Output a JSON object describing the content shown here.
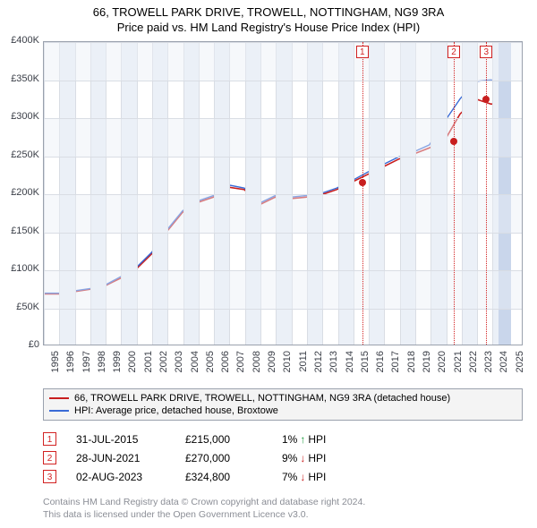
{
  "title": "66, TROWELL PARK DRIVE, TROWELL, NOTTINGHAM, NG9 3RA",
  "subtitle": "Price paid vs. HM Land Registry's House Price Index (HPI)",
  "chart": {
    "type": "line",
    "background_color": "#ffffff",
    "plot_border_color": "#9aa1ad",
    "band_color": "#ebf0f7",
    "grid_color": "#d9dde4",
    "axis_font_size": 11,
    "axis_text_color": "#3a3e47",
    "x": {
      "min": 1995,
      "max": 2026,
      "tick_step": 1
    },
    "y": {
      "min": 0,
      "max": 400000,
      "tick_step": 50000,
      "prefix": "£",
      "labels": [
        "£0",
        "£50K",
        "£100K",
        "£150K",
        "£200K",
        "£250K",
        "£300K",
        "£350K",
        "£400K"
      ]
    },
    "series": [
      {
        "name": "66, TROWELL PARK DRIVE, TROWELL, NOTTINGHAM, NG9 3RA (detached house)",
        "color": "#c81e1e",
        "line_width": 1.6,
        "points": [
          [
            1995,
            67000
          ],
          [
            1996,
            67000
          ],
          [
            1997,
            70000
          ],
          [
            1998,
            73000
          ],
          [
            1999,
            78000
          ],
          [
            2000,
            88000
          ],
          [
            2001,
            100000
          ],
          [
            2002,
            120000
          ],
          [
            2003,
            150000
          ],
          [
            2004,
            175000
          ],
          [
            2005,
            188000
          ],
          [
            2006,
            195000
          ],
          [
            2007,
            208000
          ],
          [
            2008,
            205000
          ],
          [
            2009,
            185000
          ],
          [
            2010,
            195000
          ],
          [
            2011,
            193000
          ],
          [
            2012,
            195000
          ],
          [
            2013,
            198000
          ],
          [
            2014,
            205000
          ],
          [
            2015,
            215000
          ],
          [
            2016,
            225000
          ],
          [
            2017,
            235000
          ],
          [
            2018,
            245000
          ],
          [
            2019,
            252000
          ],
          [
            2020,
            260000
          ],
          [
            2021,
            270000
          ],
          [
            2022,
            305000
          ],
          [
            2023,
            324800
          ],
          [
            2024,
            318000
          ],
          [
            2025,
            320000
          ]
        ]
      },
      {
        "name": "HPI: Average price, detached house, Broxtowe",
        "color": "#3a6bd6",
        "line_width": 1.4,
        "points": [
          [
            1995,
            68000
          ],
          [
            1996,
            68000
          ],
          [
            1997,
            71000
          ],
          [
            1998,
            74000
          ],
          [
            1999,
            79000
          ],
          [
            2000,
            90000
          ],
          [
            2001,
            102000
          ],
          [
            2002,
            122000
          ],
          [
            2003,
            152000
          ],
          [
            2004,
            177000
          ],
          [
            2005,
            190000
          ],
          [
            2006,
            197000
          ],
          [
            2007,
            211000
          ],
          [
            2008,
            207000
          ],
          [
            2009,
            187000
          ],
          [
            2010,
            197000
          ],
          [
            2011,
            195000
          ],
          [
            2012,
            197000
          ],
          [
            2013,
            200000
          ],
          [
            2014,
            207000
          ],
          [
            2015,
            217000
          ],
          [
            2016,
            228000
          ],
          [
            2017,
            238000
          ],
          [
            2018,
            248000
          ],
          [
            2019,
            255000
          ],
          [
            2020,
            264000
          ],
          [
            2021,
            295000
          ],
          [
            2022,
            325000
          ],
          [
            2023,
            348000
          ],
          [
            2024,
            350000
          ],
          [
            2025,
            345000
          ]
        ]
      }
    ],
    "sale_markers": [
      {
        "n": "1",
        "year": 2015.58,
        "price": 215000,
        "color": "#c81e1e"
      },
      {
        "n": "2",
        "year": 2021.49,
        "price": 270000,
        "color": "#c81e1e"
      },
      {
        "n": "3",
        "year": 2023.59,
        "price": 324800,
        "color": "#c81e1e"
      }
    ],
    "last_band": {
      "from": 2024.4,
      "to": 2025.2,
      "color": "#c9d6eb"
    }
  },
  "legend": {
    "background": "#f4f4f4",
    "border_color": "#9aa1ad",
    "items": [
      {
        "color": "#c81e1e",
        "label": "66, TROWELL PARK DRIVE, TROWELL, NOTTINGHAM, NG9 3RA (detached house)"
      },
      {
        "color": "#3a6bd6",
        "label": "HPI: Average price, detached house, Broxtowe"
      }
    ]
  },
  "sales": [
    {
      "n": "1",
      "date": "31-JUL-2015",
      "price": "£215,000",
      "hpi_pct": "1%",
      "arrow": "↑",
      "arrow_color": "#1a9b3d",
      "hpi_label": "HPI"
    },
    {
      "n": "2",
      "date": "28-JUN-2021",
      "price": "£270,000",
      "hpi_pct": "9%",
      "arrow": "↓",
      "arrow_color": "#c81e1e",
      "hpi_label": "HPI"
    },
    {
      "n": "3",
      "date": "02-AUG-2023",
      "price": "£324,800",
      "hpi_pct": "7%",
      "arrow": "↓",
      "arrow_color": "#c81e1e",
      "hpi_label": "HPI"
    }
  ],
  "footer": {
    "line1": "Contains HM Land Registry data © Crown copyright and database right 2024.",
    "line2": "This data is licensed under the Open Government Licence v3.0."
  }
}
